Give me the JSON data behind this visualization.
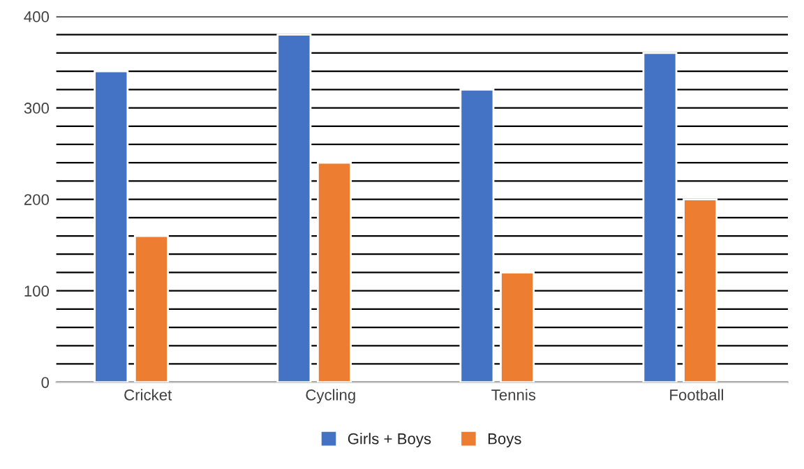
{
  "chart_data": {
    "type": "bar",
    "categories": [
      "Cricket",
      "Cycling",
      "Tennis",
      "Football"
    ],
    "series": [
      {
        "name": "Girls + Boys",
        "color": "#4472c4",
        "values": [
          340,
          380,
          320,
          360
        ]
      },
      {
        "name": "Boys",
        "color": "#ed7d31",
        "values": [
          160,
          240,
          120,
          200
        ]
      }
    ],
    "ylim": [
      0,
      400
    ],
    "yticks": [
      0,
      {
        "value": 20,
        "label": null
      },
      {
        "value": 40,
        "label": null
      },
      {
        "value": 60,
        "label": null
      },
      {
        "value": 80,
        "label": null
      },
      100,
      {
        "value": 120,
        "label": null
      },
      {
        "value": 140,
        "label": null
      },
      {
        "value": 160,
        "label": null
      },
      {
        "value": 180,
        "label": null
      },
      200,
      {
        "value": 220,
        "label": null
      },
      {
        "value": 240,
        "label": null
      },
      {
        "value": 260,
        "label": null
      },
      {
        "value": 280,
        "label": null
      },
      300,
      {
        "value": 320,
        "label": null
      },
      {
        "value": 340,
        "label": null
      },
      {
        "value": 360,
        "label": null
      },
      {
        "value": 380,
        "label": null
      },
      400
    ],
    "grid": "y",
    "legend": "bottom"
  }
}
